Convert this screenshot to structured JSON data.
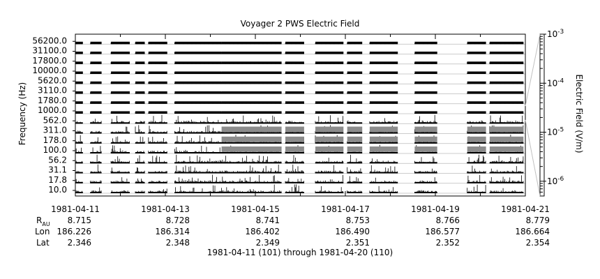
{
  "chart_data": {
    "type": "heatmap",
    "title": "Voyager 2 PWS Electric Field",
    "ylabel": "Frequency (Hz)",
    "colorbar_label": "Electric Field (V/m)",
    "xlabel": "1981-04-11 (101) through 1981-04-20 (110)",
    "frequency_channels": [
      "10.0",
      "17.8",
      "31.1",
      "56.2",
      "100.0",
      "178.0",
      "311.0",
      "562.0",
      "1000.0",
      "1780.0",
      "3110.0",
      "5620.0",
      "10000.0",
      "17800.0",
      "31100.0",
      "56200.0"
    ],
    "colorbar_ticks": [
      {
        "value": 0.001,
        "base": "10",
        "exp": "-3"
      },
      {
        "value": 0.0001,
        "base": "10",
        "exp": "-4"
      },
      {
        "value": 1e-05,
        "base": "10",
        "exp": "-5"
      },
      {
        "value": 1e-06,
        "base": "10",
        "exp": "-6"
      }
    ],
    "colorbar_range": [
      5e-07,
      0.001
    ],
    "colorbar_scale": "log",
    "x_range": [
      "1981-04-11",
      "1981-04-21"
    ],
    "x_ticks": [
      {
        "date": "1981-04-11",
        "R": "8.715",
        "Lon": "186.226",
        "Lat": "2.346"
      },
      {
        "date": "1981-04-13",
        "R": "8.728",
        "Lon": "186.314",
        "Lat": "2.348"
      },
      {
        "date": "1981-04-15",
        "R": "8.741",
        "Lon": "186.402",
        "Lat": "2.349"
      },
      {
        "date": "1981-04-17",
        "R": "8.753",
        "Lon": "186.490",
        "Lat": "2.351"
      },
      {
        "date": "1981-04-19",
        "R": "8.766",
        "Lon": "186.577",
        "Lat": "2.352"
      },
      {
        "date": "1981-04-21",
        "R": "8.779",
        "Lon": "186.664",
        "Lat": "2.354"
      }
    ],
    "ephemeris_labels": {
      "r_base": "R",
      "r_sub": "AU",
      "lon": "Lon",
      "lat": "Lat"
    },
    "data_segments": [
      [
        "1981-04-11T00:00",
        "1981-04-11T04:00"
      ],
      [
        "1981-04-11T08:00",
        "1981-04-11T14:00"
      ],
      [
        "1981-04-11T19:00",
        "1981-04-12T05:00"
      ],
      [
        "1981-04-12T08:00",
        "1981-04-12T13:00"
      ],
      [
        "1981-04-12T15:00",
        "1981-04-13T01:00"
      ],
      [
        "1981-04-13T05:00",
        "1981-04-14T06:00"
      ],
      [
        "1981-04-14T06:00",
        "1981-04-15T14:00"
      ],
      [
        "1981-04-15T16:00",
        "1981-04-16T02:00"
      ],
      [
        "1981-04-16T08:00",
        "1981-04-16T23:00"
      ],
      [
        "1981-04-17T01:00",
        "1981-04-17T09:00"
      ],
      [
        "1981-04-17T13:00",
        "1981-04-18T04:00"
      ],
      [
        "1981-04-18T13:00",
        "1981-04-19T01:00"
      ],
      [
        "1981-04-19T17:00",
        "1981-04-20T03:00"
      ],
      [
        "1981-04-20T05:00",
        "1981-04-20T23:00"
      ]
    ],
    "legend": "none",
    "grid": false
  }
}
